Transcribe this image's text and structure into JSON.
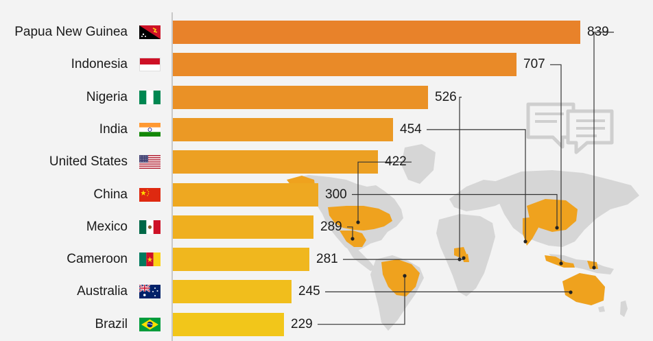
{
  "chart_data": {
    "type": "bar",
    "orientation": "horizontal",
    "categories": [
      "Papua New Guinea",
      "Indonesia",
      "Nigeria",
      "India",
      "United States",
      "China",
      "Mexico",
      "Cameroon",
      "Australia",
      "Brazil"
    ],
    "values": [
      839,
      707,
      526,
      454,
      422,
      300,
      289,
      281,
      245,
      229
    ],
    "xlim": [
      0,
      839
    ],
    "grid": false,
    "legend": "none"
  },
  "colors": {
    "bar_top": "#e8822a",
    "bar_bottom": "#f2c61a",
    "map_land": "#d6d6d6",
    "map_highlight": "#efa21e",
    "leader_line": "#333333",
    "icon": "#cfcfcf",
    "background": "#f3f3f3"
  },
  "icons": {
    "speech": "speech-bubbles-icon",
    "map": "world-map-icon"
  }
}
